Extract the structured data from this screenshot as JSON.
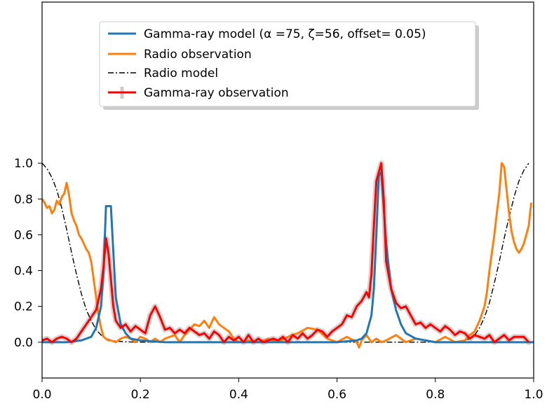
{
  "chart_data": {
    "type": "line",
    "xlim": [
      0.0,
      1.0
    ],
    "ylim": [
      -0.2,
      1.9
    ],
    "xticks": [
      "0.0",
      "0.2",
      "0.4",
      "0.6",
      "0.8",
      "1.0"
    ],
    "yticks": [
      "0.0",
      "0.2",
      "0.4",
      "0.6",
      "0.8",
      "1.0"
    ],
    "xtick_values": [
      0.0,
      0.2,
      0.4,
      0.6,
      0.8,
      1.0
    ],
    "ytick_values": [
      0.0,
      0.2,
      0.4,
      0.6,
      0.8,
      1.0
    ],
    "grid": false,
    "legend_position": "top-center",
    "series": [
      {
        "key": "gamma_model",
        "name": "Gamma-ray model (α =75, ζ=56, offset= 0.05)",
        "color": "#1f77b4",
        "style": "solid",
        "x": [
          0.0,
          0.05,
          0.08,
          0.1,
          0.11,
          0.12,
          0.125,
          0.13,
          0.14,
          0.145,
          0.15,
          0.16,
          0.17,
          0.18,
          0.2,
          0.25,
          0.4,
          0.6,
          0.64,
          0.65,
          0.66,
          0.67,
          0.675,
          0.68,
          0.685,
          0.69,
          0.7,
          0.71,
          0.72,
          0.73,
          0.74,
          0.76,
          0.8,
          1.0
        ],
        "y": [
          0.0,
          0.0,
          0.01,
          0.03,
          0.08,
          0.2,
          0.4,
          0.76,
          0.76,
          0.5,
          0.25,
          0.1,
          0.05,
          0.02,
          0.01,
          0.0,
          0.0,
          0.0,
          0.01,
          0.02,
          0.05,
          0.15,
          0.3,
          0.6,
          0.93,
          0.95,
          0.55,
          0.3,
          0.18,
          0.1,
          0.05,
          0.02,
          0.0,
          0.0
        ]
      },
      {
        "key": "radio_obs",
        "name": "Radio observation",
        "color": "#ff7f0e",
        "style": "solid",
        "x": [
          0.0,
          0.005,
          0.01,
          0.015,
          0.02,
          0.025,
          0.03,
          0.035,
          0.04,
          0.045,
          0.05,
          0.055,
          0.06,
          0.065,
          0.07,
          0.075,
          0.08,
          0.085,
          0.09,
          0.095,
          0.1,
          0.105,
          0.11,
          0.115,
          0.12,
          0.125,
          0.13,
          0.135,
          0.14,
          0.15,
          0.16,
          0.17,
          0.18,
          0.19,
          0.2,
          0.21,
          0.22,
          0.23,
          0.24,
          0.25,
          0.26,
          0.27,
          0.28,
          0.29,
          0.3,
          0.31,
          0.32,
          0.33,
          0.34,
          0.35,
          0.36,
          0.37,
          0.38,
          0.39,
          0.4,
          0.42,
          0.44,
          0.46,
          0.48,
          0.5,
          0.52,
          0.54,
          0.56,
          0.58,
          0.6,
          0.62,
          0.64,
          0.645,
          0.65,
          0.66,
          0.67,
          0.68,
          0.69,
          0.7,
          0.72,
          0.74,
          0.76,
          0.78,
          0.8,
          0.82,
          0.84,
          0.86,
          0.87,
          0.88,
          0.89,
          0.9,
          0.905,
          0.91,
          0.915,
          0.92,
          0.925,
          0.93,
          0.935,
          0.94,
          0.945,
          0.95,
          0.955,
          0.96,
          0.965,
          0.97,
          0.975,
          0.98,
          0.985,
          0.99,
          0.995
        ],
        "y": [
          0.8,
          0.78,
          0.75,
          0.76,
          0.72,
          0.74,
          0.79,
          0.77,
          0.81,
          0.83,
          0.89,
          0.82,
          0.72,
          0.68,
          0.65,
          0.6,
          0.58,
          0.55,
          0.52,
          0.5,
          0.45,
          0.35,
          0.25,
          0.15,
          0.08,
          0.03,
          0.02,
          0.01,
          0.01,
          0.0,
          0.02,
          0.03,
          0.02,
          0.0,
          0.03,
          0.02,
          0.0,
          0.02,
          0.0,
          0.02,
          0.03,
          0.04,
          0.0,
          0.04,
          0.07,
          0.1,
          0.09,
          0.12,
          0.08,
          0.14,
          0.1,
          0.08,
          0.06,
          0.02,
          0.0,
          0.01,
          0.0,
          0.02,
          0.0,
          0.03,
          0.05,
          0.08,
          0.07,
          0.02,
          0.0,
          0.03,
          0.0,
          -0.03,
          0.01,
          0.04,
          0.0,
          0.02,
          0.0,
          0.01,
          0.04,
          0.0,
          0.02,
          0.01,
          0.0,
          0.03,
          0.0,
          0.01,
          0.04,
          0.06,
          0.12,
          0.2,
          0.28,
          0.4,
          0.5,
          0.6,
          0.72,
          0.83,
          1.0,
          0.98,
          0.85,
          0.72,
          0.62,
          0.56,
          0.52,
          0.5,
          0.52,
          0.55,
          0.6,
          0.65,
          0.78
        ]
      },
      {
        "key": "radio_model",
        "name": "Radio model",
        "color": "#000000",
        "style": "dashdot",
        "x": [
          0.0,
          0.01,
          0.02,
          0.03,
          0.04,
          0.05,
          0.06,
          0.07,
          0.08,
          0.09,
          0.1,
          0.11,
          0.12,
          0.13,
          0.14,
          0.15,
          0.17,
          0.2,
          0.3,
          0.5,
          0.7,
          0.8,
          0.85,
          0.87,
          0.88,
          0.89,
          0.9,
          0.91,
          0.92,
          0.93,
          0.94,
          0.95,
          0.96,
          0.97,
          0.98,
          0.99
        ],
        "y": [
          1.0,
          0.97,
          0.92,
          0.85,
          0.75,
          0.63,
          0.5,
          0.38,
          0.27,
          0.18,
          0.12,
          0.07,
          0.04,
          0.02,
          0.012,
          0.006,
          0.002,
          0.0,
          0.0,
          0.0,
          0.0,
          0.0,
          0.005,
          0.02,
          0.04,
          0.08,
          0.14,
          0.22,
          0.33,
          0.45,
          0.58,
          0.7,
          0.81,
          0.9,
          0.96,
          1.0
        ]
      },
      {
        "key": "gamma_obs",
        "name": "Gamma-ray observation",
        "color": "#ff0000",
        "style": "solid",
        "x": [
          0.0,
          0.01,
          0.02,
          0.03,
          0.04,
          0.05,
          0.06,
          0.07,
          0.08,
          0.09,
          0.1,
          0.11,
          0.12,
          0.125,
          0.13,
          0.135,
          0.14,
          0.145,
          0.15,
          0.16,
          0.17,
          0.18,
          0.19,
          0.2,
          0.21,
          0.22,
          0.23,
          0.24,
          0.25,
          0.26,
          0.27,
          0.28,
          0.29,
          0.3,
          0.31,
          0.32,
          0.33,
          0.34,
          0.35,
          0.36,
          0.37,
          0.38,
          0.39,
          0.4,
          0.41,
          0.42,
          0.43,
          0.44,
          0.45,
          0.46,
          0.47,
          0.48,
          0.49,
          0.5,
          0.51,
          0.52,
          0.53,
          0.54,
          0.55,
          0.56,
          0.57,
          0.58,
          0.59,
          0.6,
          0.61,
          0.62,
          0.63,
          0.64,
          0.65,
          0.66,
          0.665,
          0.67,
          0.675,
          0.68,
          0.685,
          0.69,
          0.695,
          0.7,
          0.71,
          0.72,
          0.73,
          0.74,
          0.75,
          0.76,
          0.77,
          0.78,
          0.79,
          0.8,
          0.81,
          0.82,
          0.83,
          0.84,
          0.85,
          0.86,
          0.87,
          0.88,
          0.89,
          0.9,
          0.91,
          0.92,
          0.93,
          0.94,
          0.95,
          0.96,
          0.97,
          0.98,
          0.99
        ],
        "y": [
          0.01,
          0.02,
          0.0,
          0.02,
          0.03,
          0.02,
          0.0,
          0.02,
          0.06,
          0.1,
          0.14,
          0.18,
          0.3,
          0.42,
          0.58,
          0.5,
          0.35,
          0.2,
          0.12,
          0.08,
          0.1,
          0.06,
          0.09,
          0.07,
          0.05,
          0.15,
          0.2,
          0.14,
          0.07,
          0.08,
          0.05,
          0.07,
          0.05,
          0.08,
          0.06,
          0.04,
          0.05,
          0.02,
          0.06,
          0.04,
          0.0,
          0.03,
          0.01,
          0.03,
          0.0,
          0.04,
          0.0,
          0.02,
          0.0,
          0.01,
          0.02,
          0.01,
          0.03,
          0.0,
          0.04,
          0.02,
          0.05,
          0.02,
          0.04,
          0.07,
          0.06,
          0.03,
          0.06,
          0.08,
          0.1,
          0.15,
          0.14,
          0.2,
          0.23,
          0.28,
          0.25,
          0.38,
          0.65,
          0.9,
          0.95,
          1.0,
          0.8,
          0.45,
          0.3,
          0.22,
          0.19,
          0.2,
          0.15,
          0.1,
          0.11,
          0.08,
          0.1,
          0.08,
          0.06,
          0.09,
          0.07,
          0.04,
          0.06,
          0.05,
          0.02,
          0.04,
          0.03,
          0.02,
          0.04,
          0.0,
          0.02,
          0.04,
          0.01,
          0.03,
          0.03,
          0.03,
          0.0
        ]
      }
    ]
  }
}
